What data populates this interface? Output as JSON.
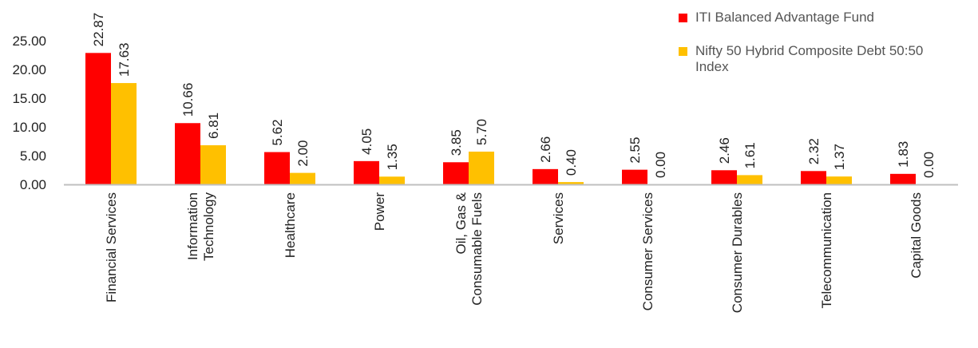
{
  "chart_data": {
    "type": "bar",
    "categories": [
      "Financial Services",
      "Information Technology",
      "Healthcare",
      "Power",
      "Oil, Gas & Consumable Fuels",
      "Services",
      "Consumer Services",
      "Consumer Durables",
      "Telecommunication",
      "Capital Goods"
    ],
    "category_lines": [
      [
        "Financial Services"
      ],
      [
        "Information",
        "Technology"
      ],
      [
        "Healthcare"
      ],
      [
        "Power"
      ],
      [
        "Oil, Gas &",
        "Consumable Fuels"
      ],
      [
        "Services"
      ],
      [
        "Consumer Services"
      ],
      [
        "Consumer Durables"
      ],
      [
        "Telecommunication"
      ],
      [
        "Capital Goods"
      ]
    ],
    "series": [
      {
        "name": "ITI Balanced Advantage Fund",
        "color": "#ff0000",
        "values": [
          22.87,
          10.66,
          5.62,
          4.05,
          3.85,
          2.66,
          2.55,
          2.46,
          2.32,
          1.83
        ]
      },
      {
        "name": "Nifty 50 Hybrid Composite Debt 50:50 Index",
        "color": "#ffc000",
        "values": [
          17.63,
          6.81,
          2.0,
          1.35,
          5.7,
          0.4,
          0.0,
          1.61,
          1.37,
          0.0
        ]
      }
    ],
    "yticks": [
      "0.00",
      "5.00",
      "10.00",
      "15.00",
      "20.00",
      "25.00"
    ],
    "ylim": [
      0,
      25
    ],
    "title": "",
    "xlabel": "",
    "ylabel": "",
    "legend_position": "top-right",
    "grid": false
  },
  "legend": {
    "items": [
      {
        "label": "ITI Balanced Advantage Fund",
        "color": "#ff0000"
      },
      {
        "label": "Nifty 50 Hybrid Composite Debt 50:50 Index",
        "color": "#ffc000"
      }
    ]
  }
}
